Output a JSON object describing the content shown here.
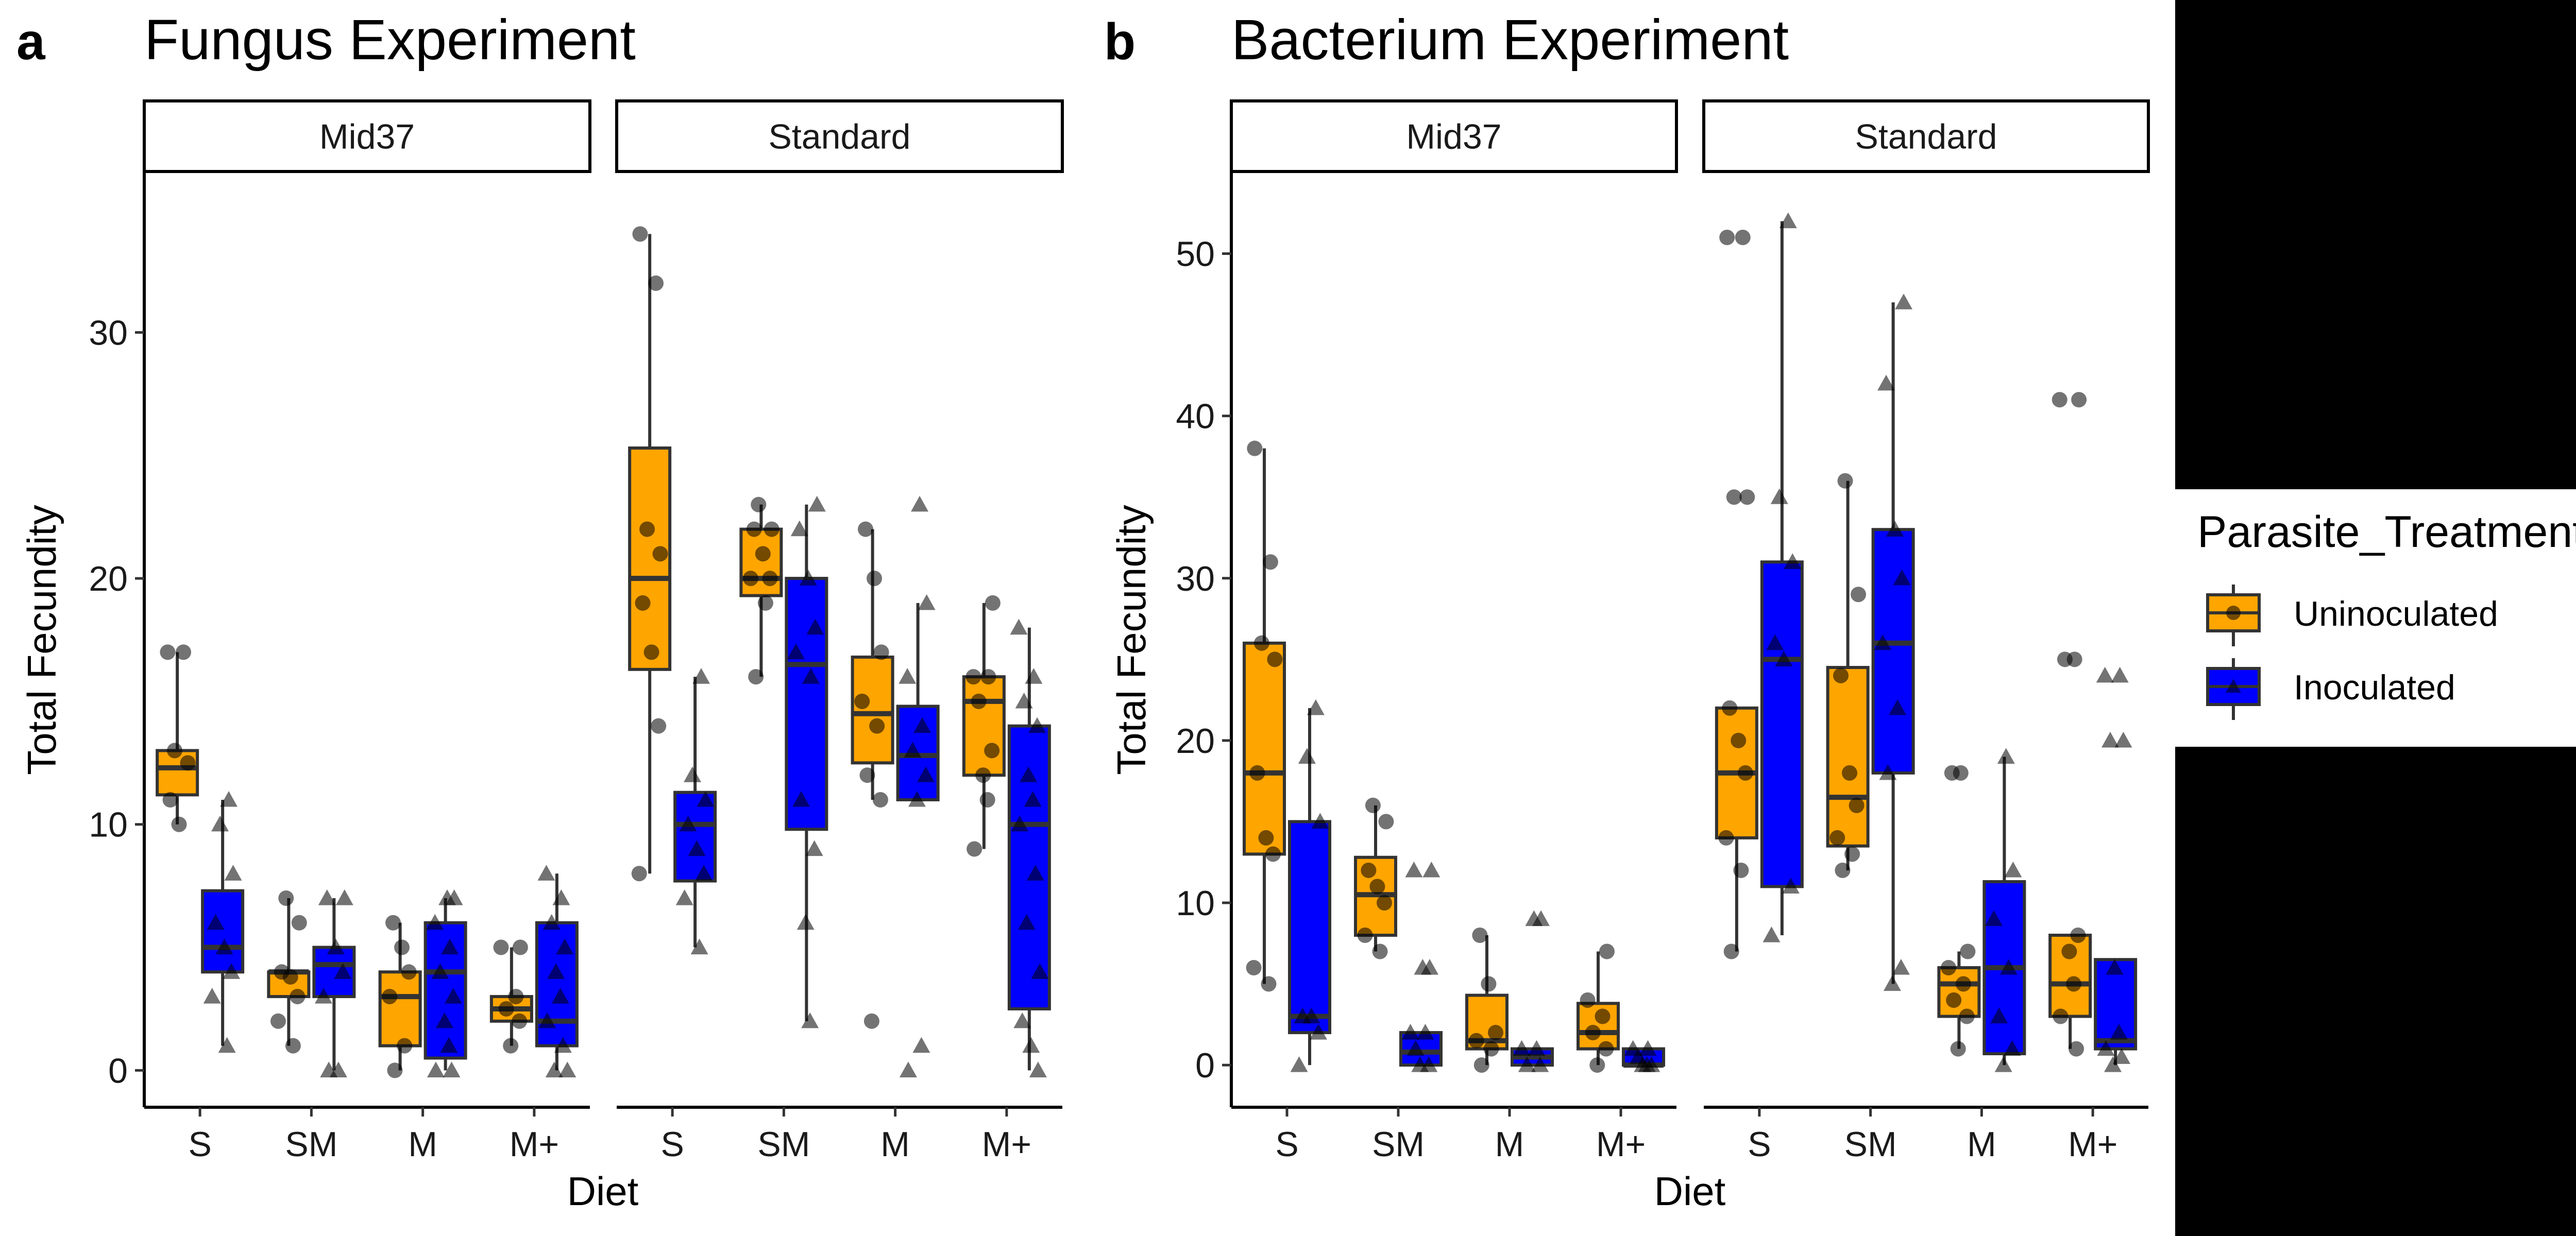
{
  "chart_data": [
    {
      "panel": "a",
      "title": "Fungus Experiment",
      "type": "box",
      "xlabel": "Diet",
      "ylabel": "Total Fecundity",
      "ylim": [
        -1.5,
        36.5
      ],
      "yticks": [
        0,
        10,
        20,
        30
      ],
      "facets": [
        {
          "label": "Mid37",
          "categories": [
            "S",
            "SM",
            "M",
            "M+"
          ],
          "boxes": [
            {
              "diet": "S",
              "treatment": "Uninoculated",
              "min": 10,
              "q1": 11.2,
              "median": 12.3,
              "q3": 13,
              "max": 17,
              "points": [
                17,
                17,
                13,
                12.5,
                11,
                10
              ]
            },
            {
              "diet": "S",
              "treatment": "Inoculated",
              "min": 1,
              "q1": 4,
              "median": 5,
              "q3": 7.3,
              "max": 11,
              "points": [
                11,
                10,
                8,
                6,
                5,
                4,
                3,
                1
              ]
            },
            {
              "diet": "SM",
              "treatment": "Uninoculated",
              "min": 1,
              "q1": 3,
              "median": 4,
              "q3": 4,
              "max": 7,
              "points": [
                7,
                6,
                4,
                3.8,
                3,
                2,
                1
              ]
            },
            {
              "diet": "SM",
              "treatment": "Inoculated",
              "min": 0,
              "q1": 3,
              "median": 4.3,
              "q3": 5,
              "max": 7,
              "points": [
                7,
                7,
                5,
                4,
                3,
                0,
                0
              ]
            },
            {
              "diet": "M",
              "treatment": "Uninoculated",
              "min": 0,
              "q1": 1,
              "median": 3,
              "q3": 4,
              "max": 6,
              "points": [
                6,
                5,
                4,
                3,
                1,
                0
              ]
            },
            {
              "diet": "M",
              "treatment": "Inoculated",
              "min": 0,
              "q1": 0.5,
              "median": 4,
              "q3": 6,
              "max": 7,
              "points": [
                7,
                7,
                6,
                5,
                4,
                3,
                2,
                1,
                0,
                0
              ]
            },
            {
              "diet": "M+",
              "treatment": "Uninoculated",
              "min": 1,
              "q1": 2,
              "median": 2.5,
              "q3": 3,
              "max": 5,
              "points": [
                5,
                5,
                3,
                2.5,
                2,
                1
              ]
            },
            {
              "diet": "M+",
              "treatment": "Inoculated",
              "min": 0,
              "q1": 1,
              "median": 2,
              "q3": 6,
              "max": 8,
              "points": [
                8,
                7,
                6,
                5,
                4,
                3,
                2,
                1,
                0,
                0
              ]
            }
          ]
        },
        {
          "label": "Standard",
          "categories": [
            "S",
            "SM",
            "M",
            "M+"
          ],
          "boxes": [
            {
              "diet": "S",
              "treatment": "Uninoculated",
              "min": 8,
              "q1": 16.3,
              "median": 20,
              "q3": 25.3,
              "max": 34,
              "points": [
                34,
                32,
                22,
                21,
                19,
                17,
                14,
                8
              ]
            },
            {
              "diet": "S",
              "treatment": "Inoculated",
              "min": 5,
              "q1": 7.7,
              "median": 10,
              "q3": 11.3,
              "max": 16,
              "points": [
                16,
                12,
                11,
                10,
                9,
                8,
                7,
                5
              ]
            },
            {
              "diet": "SM",
              "treatment": "Uninoculated",
              "min": 16,
              "q1": 19.3,
              "median": 20,
              "q3": 22,
              "max": 23,
              "points": [
                23,
                22,
                22,
                21,
                20,
                20,
                19,
                16
              ]
            },
            {
              "diet": "SM",
              "treatment": "Inoculated",
              "min": 2,
              "q1": 9.8,
              "median": 16.5,
              "q3": 20,
              "max": 23,
              "points": [
                23,
                22,
                20,
                18,
                17,
                16,
                11,
                9,
                6,
                2
              ]
            },
            {
              "diet": "M",
              "treatment": "Uninoculated",
              "min": 11,
              "q1": 12.5,
              "median": 14.5,
              "q3": 16.8,
              "max": 22,
              "points": [
                22,
                20,
                17,
                15,
                14,
                12,
                11,
                2
              ]
            },
            {
              "diet": "M",
              "treatment": "Inoculated",
              "min": 11,
              "q1": 11,
              "median": 12.8,
              "q3": 14.8,
              "max": 19,
              "points": [
                23,
                19,
                16,
                14,
                13,
                12,
                11,
                1,
                0
              ]
            },
            {
              "diet": "M+",
              "treatment": "Uninoculated",
              "min": 9,
              "q1": 12,
              "median": 15,
              "q3": 16,
              "max": 19,
              "points": [
                19,
                16,
                16,
                15,
                13,
                12,
                11,
                9
              ]
            },
            {
              "diet": "M+",
              "treatment": "Inoculated",
              "min": 0,
              "q1": 2.5,
              "median": 10,
              "q3": 14,
              "max": 18,
              "points": [
                18,
                16,
                15,
                14,
                12,
                11,
                10,
                8,
                6,
                4,
                2,
                1,
                0
              ]
            }
          ]
        }
      ]
    },
    {
      "panel": "b",
      "title": "Bacterium Experiment",
      "type": "box",
      "xlabel": "Diet",
      "ylabel": "Total Fecundity",
      "ylim": [
        -2.6,
        55
      ],
      "yticks": [
        0,
        10,
        20,
        30,
        40,
        50
      ],
      "facets": [
        {
          "label": "Mid37",
          "categories": [
            "S",
            "SM",
            "M",
            "M+"
          ],
          "boxes": [
            {
              "diet": "S",
              "treatment": "Uninoculated",
              "min": 5,
              "q1": 13,
              "median": 18,
              "q3": 26,
              "max": 38,
              "points": [
                38,
                31,
                26,
                25,
                18,
                14,
                13,
                6,
                5
              ]
            },
            {
              "diet": "S",
              "treatment": "Inoculated",
              "min": 0,
              "q1": 2,
              "median": 3,
              "q3": 15,
              "max": 22,
              "points": [
                22,
                19,
                15,
                3,
                3,
                2,
                0
              ]
            },
            {
              "diet": "SM",
              "treatment": "Uninoculated",
              "min": 7,
              "q1": 8,
              "median": 10.5,
              "q3": 12.8,
              "max": 16,
              "points": [
                16,
                15,
                12,
                11,
                10,
                8,
                7
              ]
            },
            {
              "diet": "SM",
              "treatment": "Inoculated",
              "min": 0,
              "q1": 0,
              "median": 0.8,
              "q3": 2,
              "max": 2,
              "points": [
                12,
                12,
                6,
                6,
                2,
                2,
                1,
                0,
                0
              ]
            },
            {
              "diet": "M",
              "treatment": "Uninoculated",
              "min": 0,
              "q1": 1,
              "median": 1.5,
              "q3": 4.3,
              "max": 8,
              "points": [
                8,
                5,
                2,
                1.5,
                1,
                0
              ]
            },
            {
              "diet": "M",
              "treatment": "Inoculated",
              "min": 0,
              "q1": 0,
              "median": 0.5,
              "q3": 1,
              "max": 1,
              "points": [
                9,
                9,
                1,
                1,
                0,
                0
              ]
            },
            {
              "diet": "M+",
              "treatment": "Uninoculated",
              "min": 0,
              "q1": 1,
              "median": 2,
              "q3": 3.8,
              "max": 7,
              "points": [
                7,
                4,
                3,
                2,
                1,
                0
              ]
            },
            {
              "diet": "M+",
              "treatment": "Inoculated",
              "min": 0,
              "q1": 0,
              "median": 0,
              "q3": 1,
              "max": 1,
              "points": [
                1,
                1,
                0.5,
                0,
                0,
                0
              ]
            }
          ]
        },
        {
          "label": "Standard",
          "categories": [
            "S",
            "SM",
            "M",
            "M+"
          ],
          "boxes": [
            {
              "diet": "S",
              "treatment": "Uninoculated",
              "min": 7,
              "q1": 14,
              "median": 18,
              "q3": 22,
              "max": 22,
              "points": [
                51,
                51,
                35,
                35,
                22,
                20,
                18,
                14,
                12,
                7
              ]
            },
            {
              "diet": "S",
              "treatment": "Inoculated",
              "min": 8,
              "q1": 11,
              "median": 25,
              "q3": 31,
              "max": 52,
              "points": [
                52,
                35,
                31,
                26,
                25,
                11,
                8
              ]
            },
            {
              "diet": "SM",
              "treatment": "Uninoculated",
              "min": 12,
              "q1": 13.5,
              "median": 16.5,
              "q3": 24.5,
              "max": 36,
              "points": [
                36,
                29,
                24,
                18,
                16,
                14,
                13,
                12
              ]
            },
            {
              "diet": "SM",
              "treatment": "Inoculated",
              "min": 5,
              "q1": 18,
              "median": 26,
              "q3": 33,
              "max": 47,
              "points": [
                47,
                42,
                33,
                30,
                26,
                22,
                18,
                6,
                5
              ]
            },
            {
              "diet": "M",
              "treatment": "Uninoculated",
              "min": 1,
              "q1": 3,
              "median": 5,
              "q3": 6,
              "max": 7,
              "points": [
                18,
                18,
                7,
                6,
                5,
                4,
                3,
                1
              ]
            },
            {
              "diet": "M",
              "treatment": "Inoculated",
              "min": 0,
              "q1": 0.7,
              "median": 6,
              "q3": 11.3,
              "max": 19,
              "points": [
                19,
                12,
                9,
                6,
                3,
                1,
                0
              ]
            },
            {
              "diet": "M+",
              "treatment": "Uninoculated",
              "min": 1,
              "q1": 3,
              "median": 5,
              "q3": 8,
              "max": 8,
              "points": [
                41,
                41,
                25,
                25,
                8,
                7,
                5,
                3,
                1
              ]
            },
            {
              "diet": "M+",
              "treatment": "Inoculated",
              "min": 0,
              "q1": 1,
              "median": 1.5,
              "q3": 6.5,
              "max": 6.5,
              "points": [
                24,
                24,
                20,
                20,
                6,
                2,
                1,
                0.5,
                0
              ]
            }
          ]
        }
      ]
    }
  ],
  "legend": {
    "title": "Parasite_Treatment",
    "items": [
      {
        "label": "Uninoculated",
        "color": "#FFA500",
        "shape": "circle"
      },
      {
        "label": "Inoculated",
        "color": "#0000FF",
        "shape": "triangle"
      }
    ]
  }
}
